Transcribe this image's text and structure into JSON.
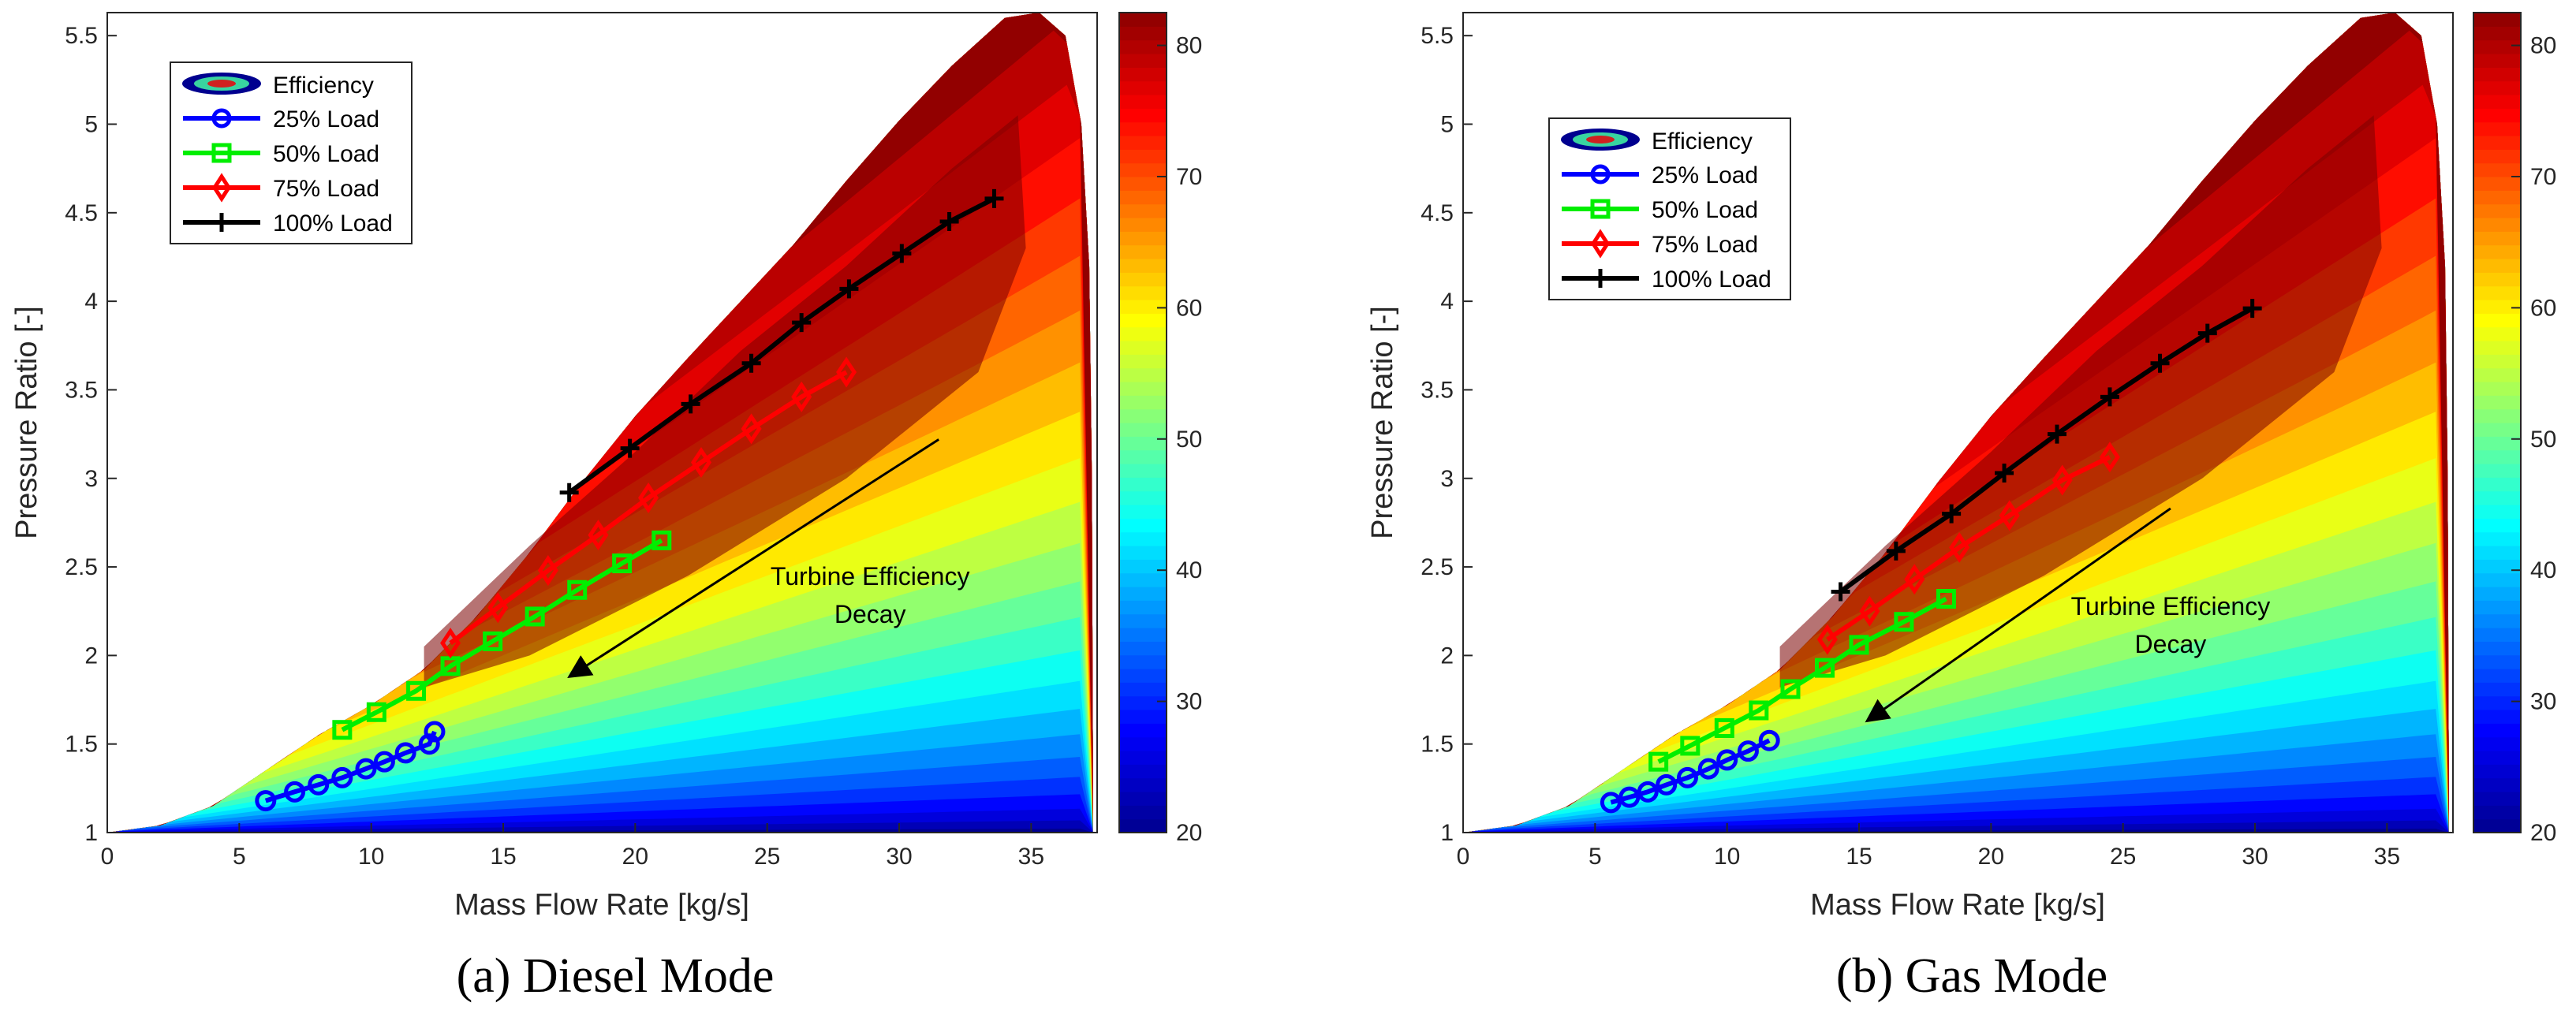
{
  "figure": {
    "colorbar": {
      "min": 20,
      "max": 82.5,
      "ticks": [
        20,
        30,
        40,
        50,
        60,
        70,
        80
      ]
    },
    "palette": {
      "efficiency_colors": [
        "#00008f",
        "#0000ff",
        "#0080ff",
        "#00ffff",
        "#80ff80",
        "#ffff00",
        "#ff8000",
        "#ff0000",
        "#8b0000"
      ],
      "load_25": "#0000ff",
      "load_50": "#00ee00",
      "load_75": "#ff0000",
      "load_100": "#000000",
      "background": "#ffffff"
    }
  },
  "chart_data": [
    {
      "type": "contour+line",
      "caption": "(a) Diesel Mode",
      "xlabel": "Mass Flow Rate [kg/s]",
      "ylabel": "Pressure Ratio [-]",
      "xlim": [
        0,
        37.5
      ],
      "ylim": [
        1,
        5.63
      ],
      "xticks": [
        0,
        5,
        10,
        15,
        20,
        25,
        30,
        35
      ],
      "yticks": [
        1,
        1.5,
        2,
        2.5,
        3,
        3.5,
        4,
        4.5,
        5,
        5.5
      ],
      "colorbar_label_range": [
        20,
        80
      ],
      "legend": {
        "location": "top-left",
        "entries": [
          "Efficiency",
          "25% Load",
          "50% Load",
          "75% Load",
          "100% Load"
        ]
      },
      "annotation": {
        "lines": [
          "Turbine Efficiency",
          "Decay"
        ],
        "text_at": [
          28.9,
          2.3
        ],
        "arrow_from": [
          31.5,
          3.22
        ],
        "arrow_to": [
          17.5,
          1.88
        ]
      },
      "series": [
        {
          "name": "25% Load",
          "marker": "circle",
          "x": [
            6.0,
            7.1,
            8.0,
            8.9,
            9.8,
            10.5,
            11.3,
            12.2,
            12.4
          ],
          "y": [
            1.18,
            1.23,
            1.27,
            1.31,
            1.36,
            1.4,
            1.45,
            1.5,
            1.57
          ]
        },
        {
          "name": "50% Load",
          "marker": "square",
          "x": [
            8.9,
            10.2,
            11.7,
            13.0,
            14.6,
            16.2,
            17.8,
            19.5,
            21.0
          ],
          "y": [
            1.58,
            1.68,
            1.8,
            1.94,
            2.08,
            2.22,
            2.37,
            2.52,
            2.65
          ]
        },
        {
          "name": "75% Load",
          "marker": "diamond",
          "x": [
            13.0,
            14.8,
            16.7,
            18.6,
            20.5,
            22.5,
            24.4,
            26.3,
            28.0
          ],
          "y": [
            2.07,
            2.27,
            2.48,
            2.68,
            2.89,
            3.09,
            3.28,
            3.46,
            3.6
          ]
        },
        {
          "name": "100% Load",
          "marker": "plus",
          "x": [
            17.5,
            19.8,
            22.1,
            24.4,
            26.3,
            28.1,
            30.1,
            31.9,
            33.6
          ],
          "y": [
            2.92,
            3.17,
            3.42,
            3.65,
            3.88,
            4.07,
            4.27,
            4.45,
            4.58
          ]
        }
      ]
    },
    {
      "type": "contour+line",
      "caption": "(b) Gas Mode",
      "xlabel": "Mass Flow Rate [kg/s]",
      "ylabel": "Pressure Ratio [-]",
      "xlim": [
        0,
        37.5
      ],
      "ylim": [
        1,
        5.63
      ],
      "xticks": [
        0,
        5,
        10,
        15,
        20,
        25,
        30,
        35
      ],
      "yticks": [
        1,
        1.5,
        2,
        2.5,
        3,
        3.5,
        4,
        4.5,
        5,
        5.5
      ],
      "colorbar_label_range": [
        20,
        80
      ],
      "legend": {
        "location": "top-left",
        "entries": [
          "Efficiency",
          "25% Load",
          "50% Load",
          "75% Load",
          "100% Load"
        ]
      },
      "annotation": {
        "lines": [
          "Turbine Efficiency",
          "Decay"
        ],
        "text_at": [
          26.8,
          2.13
        ],
        "arrow_from": [
          26.8,
          2.83
        ],
        "arrow_to": [
          15.3,
          1.63
        ]
      },
      "series": [
        {
          "name": "25% Load",
          "marker": "circle",
          "x": [
            5.6,
            6.3,
            7.0,
            7.7,
            8.5,
            9.3,
            10.0,
            10.8,
            11.6
          ],
          "y": [
            1.17,
            1.2,
            1.23,
            1.27,
            1.31,
            1.36,
            1.41,
            1.46,
            1.52
          ]
        },
        {
          "name": "50% Load",
          "marker": "square",
          "x": [
            7.4,
            8.6,
            9.9,
            11.2,
            12.4,
            13.7,
            15.0,
            16.7,
            18.3
          ],
          "y": [
            1.4,
            1.49,
            1.59,
            1.69,
            1.81,
            1.93,
            2.06,
            2.19,
            2.32
          ]
        },
        {
          "name": "75% Load",
          "marker": "diamond",
          "x": [
            13.8,
            15.4,
            17.1,
            18.8,
            20.7,
            22.7,
            24.5
          ],
          "y": [
            2.09,
            2.25,
            2.43,
            2.61,
            2.79,
            2.99,
            3.12
          ]
        },
        {
          "name": "100% Load",
          "marker": "plus",
          "x": [
            14.3,
            16.4,
            18.5,
            20.5,
            22.5,
            24.5,
            26.4,
            28.2,
            29.9
          ],
          "y": [
            2.36,
            2.59,
            2.8,
            3.03,
            3.25,
            3.46,
            3.65,
            3.82,
            3.96
          ]
        }
      ]
    }
  ]
}
